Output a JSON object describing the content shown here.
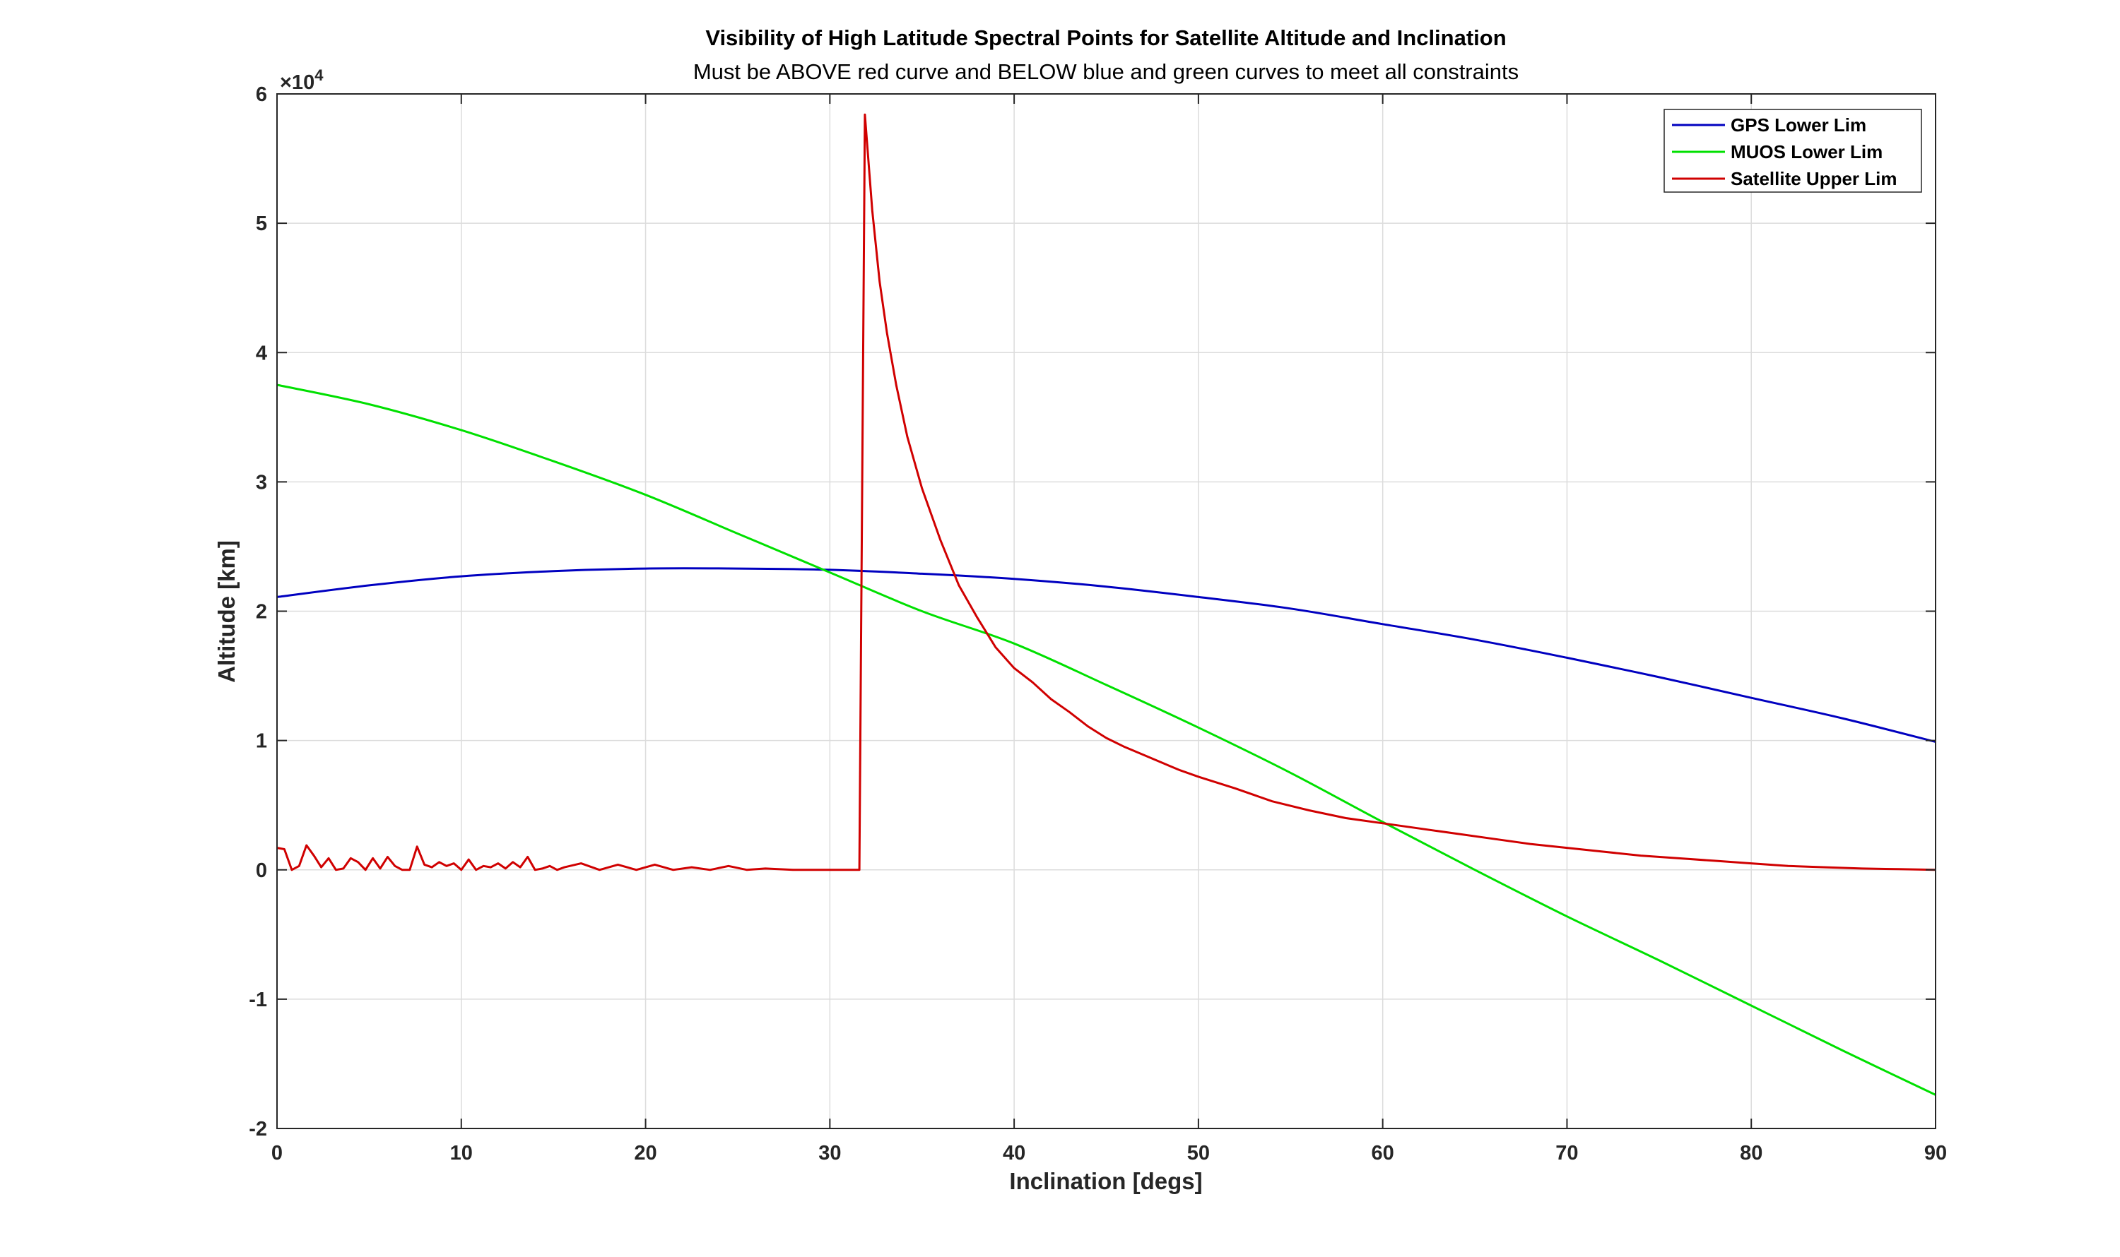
{
  "chart_data": {
    "type": "line",
    "title": "Visibility of High Latitude Spectral Points for Satellite Altitude and Inclination",
    "subtitle": "Must be ABOVE red curve and BELOW blue and green curves to meet all constraints",
    "xlabel": "Inclination [degs]",
    "ylabel": "Altitude [km]",
    "y_exponent_label": "×10",
    "y_exponent_power": "4",
    "xlim": [
      0,
      90
    ],
    "ylim": [
      -20000,
      60000
    ],
    "xticks": [
      0,
      10,
      20,
      30,
      40,
      50,
      60,
      70,
      80,
      90
    ],
    "xtick_labels": [
      "0",
      "10",
      "20",
      "30",
      "40",
      "50",
      "60",
      "70",
      "80",
      "90"
    ],
    "yticks": [
      -20000,
      -10000,
      0,
      10000,
      20000,
      30000,
      40000,
      50000,
      60000
    ],
    "ytick_labels": [
      "-2",
      "-1",
      "0",
      "1",
      "2",
      "3",
      "4",
      "5",
      "6"
    ],
    "grid": true,
    "legend_position": "top-right",
    "series": [
      {
        "name": "GPS Lower Lim",
        "color": "#0000c0",
        "x": [
          0,
          5,
          10,
          15,
          20,
          25,
          30,
          35,
          40,
          45,
          50,
          55,
          60,
          65,
          70,
          75,
          80,
          85,
          90
        ],
        "y": [
          21100,
          22000,
          22700,
          23100,
          23300,
          23300,
          23200,
          22900,
          22500,
          21900,
          21100,
          20200,
          19000,
          17800,
          16400,
          14900,
          13300,
          11700,
          9900
        ]
      },
      {
        "name": "MUOS Lower Lim",
        "color": "#00e000",
        "x": [
          0,
          5,
          10,
          15,
          20,
          25,
          30,
          35,
          40,
          45,
          50,
          55,
          60,
          65,
          70,
          75,
          80,
          85,
          90
        ],
        "y": [
          37500,
          36000,
          34000,
          31600,
          29000,
          26000,
          23000,
          20000,
          17500,
          14300,
          11000,
          7500,
          3700,
          0,
          -3600,
          -7000,
          -10500,
          -14000,
          -17400
        ]
      },
      {
        "name": "Satellite Upper Lim",
        "color": "#d00000",
        "x": [
          0,
          0.4,
          0.8,
          1.2,
          1.6,
          2.0,
          2.4,
          2.8,
          3.2,
          3.6,
          4.0,
          4.4,
          4.8,
          5.2,
          5.6,
          6.0,
          6.4,
          6.8,
          7.2,
          7.6,
          8.0,
          8.4,
          8.8,
          9.2,
          9.6,
          10.0,
          10.4,
          10.8,
          11.2,
          11.6,
          12.0,
          12.4,
          12.8,
          13.2,
          13.6,
          14.0,
          14.4,
          14.8,
          15.2,
          15.6,
          16.5,
          17.5,
          18.5,
          19.5,
          20.5,
          21.5,
          22.5,
          23.5,
          24.5,
          25.5,
          26.5,
          28,
          30,
          31.6,
          31.9,
          32.3,
          32.7,
          33.1,
          33.6,
          34.2,
          35,
          36,
          37,
          38,
          39,
          40,
          41,
          42,
          43,
          44,
          45,
          46,
          47,
          48,
          49,
          50,
          52,
          54,
          56,
          58,
          60,
          62,
          64,
          66,
          68,
          70,
          72,
          74,
          76,
          78,
          80,
          82,
          84,
          86,
          88,
          90
        ],
        "y": [
          1700,
          1600,
          0,
          300,
          1900,
          1100,
          200,
          900,
          0,
          100,
          900,
          600,
          0,
          900,
          100,
          1000,
          300,
          0,
          0,
          1800,
          400,
          200,
          600,
          300,
          500,
          0,
          800,
          0,
          300,
          200,
          500,
          100,
          600,
          200,
          1000,
          0,
          100,
          300,
          0,
          200,
          500,
          0,
          400,
          0,
          400,
          0,
          200,
          0,
          300,
          0,
          100,
          0,
          0,
          0,
          58400,
          51000,
          45500,
          41500,
          37500,
          33500,
          29500,
          25500,
          22000,
          19500,
          17200,
          15600,
          14500,
          13200,
          12200,
          11100,
          10200,
          9500,
          8900,
          8300,
          7700,
          7200,
          6300,
          5300,
          4600,
          4000,
          3600,
          3200,
          2800,
          2400,
          2000,
          1700,
          1400,
          1100,
          900,
          700,
          500,
          300,
          200,
          100,
          50,
          0
        ]
      }
    ]
  }
}
